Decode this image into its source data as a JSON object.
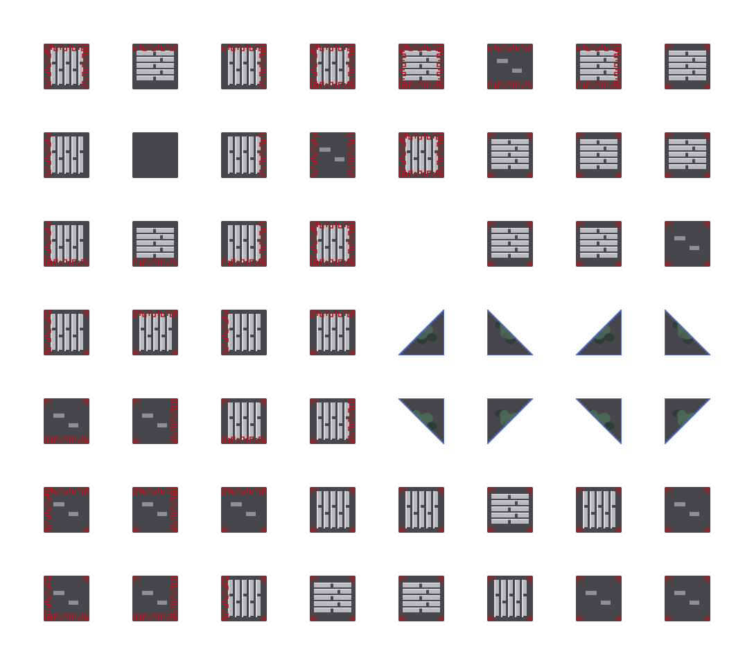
{
  "palette": {
    "background": "#ffffff",
    "floor": "#47474b",
    "brick": "#b8bac0",
    "brick_highlight": "#d7d8dc",
    "brick_shadow": "#8f9096",
    "border_red": "#b3141b",
    "border_blue": "#4f6fd2",
    "foliage": "#4d6a57",
    "foliage_dark": "#2b3d34"
  },
  "tiles": [
    {
      "id": "r1c1",
      "kind": "wall",
      "pattern": "vertical",
      "edges": [
        "top",
        "left",
        "right"
      ]
    },
    {
      "id": "r1c2",
      "kind": "wall",
      "pattern": "horizontal",
      "edges": [
        "top"
      ]
    },
    {
      "id": "r1c3",
      "kind": "wall",
      "pattern": "vertical",
      "edges": [
        "top",
        "right"
      ]
    },
    {
      "id": "r1c4",
      "kind": "wall",
      "pattern": "vertical",
      "edges": [
        "top",
        "left",
        "right",
        "bottom"
      ]
    },
    {
      "id": "r1c5",
      "kind": "wall",
      "pattern": "horizontal",
      "edges": [
        "top",
        "left",
        "right",
        "bottom"
      ]
    },
    {
      "id": "r1c6",
      "kind": "wall",
      "pattern": "dark",
      "edges": [
        "top",
        "bottom"
      ]
    },
    {
      "id": "r1c7",
      "kind": "wall",
      "pattern": "horizontal",
      "edges": [
        "top",
        "right",
        "bottom"
      ]
    },
    {
      "id": "r1c8",
      "kind": "wall",
      "pattern": "horizontal",
      "edges": [
        "corners"
      ]
    },
    {
      "id": "r2c1",
      "kind": "wall",
      "pattern": "vertical",
      "edges": [
        "left"
      ]
    },
    {
      "id": "r2c2",
      "kind": "floor",
      "pattern": "none",
      "edges": []
    },
    {
      "id": "r2c3",
      "kind": "wall",
      "pattern": "vertical",
      "edges": [
        "right"
      ]
    },
    {
      "id": "r2c4",
      "kind": "wall",
      "pattern": "dark",
      "edges": [
        "left",
        "right"
      ]
    },
    {
      "id": "r2c5",
      "kind": "wall",
      "pattern": "vertical",
      "edges": [
        "top",
        "left",
        "right",
        "bottom"
      ]
    },
    {
      "id": "r2c6",
      "kind": "wall",
      "pattern": "horizontal",
      "edges": [
        "corners"
      ]
    },
    {
      "id": "r2c7",
      "kind": "wall",
      "pattern": "horizontal",
      "edges": [
        "corners"
      ]
    },
    {
      "id": "r2c8",
      "kind": "wall",
      "pattern": "horizontal",
      "edges": [
        "corners"
      ]
    },
    {
      "id": "r3c1",
      "kind": "wall",
      "pattern": "vertical",
      "edges": [
        "left",
        "bottom"
      ]
    },
    {
      "id": "r3c2",
      "kind": "wall",
      "pattern": "horizontal",
      "edges": [
        "bottom"
      ]
    },
    {
      "id": "r3c3",
      "kind": "wall",
      "pattern": "vertical",
      "edges": [
        "right",
        "bottom"
      ]
    },
    {
      "id": "r3c4",
      "kind": "wall",
      "pattern": "vertical",
      "edges": [
        "top",
        "left",
        "right",
        "bottom"
      ]
    },
    {
      "id": "r3c5",
      "kind": "empty",
      "pattern": "none",
      "edges": []
    },
    {
      "id": "r3c6",
      "kind": "wall",
      "pattern": "horizontal",
      "edges": [
        "corners"
      ]
    },
    {
      "id": "r3c7",
      "kind": "wall",
      "pattern": "horizontal",
      "edges": [
        "corners"
      ]
    },
    {
      "id": "r3c8",
      "kind": "wall",
      "pattern": "dark",
      "edges": [
        "corners"
      ]
    },
    {
      "id": "r4c1",
      "kind": "wall",
      "pattern": "vertical",
      "edges": [
        "left",
        "corners"
      ]
    },
    {
      "id": "r4c2",
      "kind": "wall",
      "pattern": "vertical",
      "edges": [
        "top",
        "corners"
      ]
    },
    {
      "id": "r4c3",
      "kind": "wall",
      "pattern": "vertical",
      "edges": [
        "left"
      ]
    },
    {
      "id": "r4c4",
      "kind": "wall",
      "pattern": "vertical",
      "edges": [
        "top",
        "corners"
      ]
    },
    {
      "id": "r4c5",
      "kind": "slope",
      "orientation": "bottom-right",
      "edges": []
    },
    {
      "id": "r4c6",
      "kind": "slope",
      "orientation": "bottom-left",
      "edges": []
    },
    {
      "id": "r4c7",
      "kind": "slope",
      "orientation": "bottom-right",
      "edges": []
    },
    {
      "id": "r4c8",
      "kind": "slope",
      "orientation": "bottom-left",
      "edges": []
    },
    {
      "id": "r5c1",
      "kind": "wall",
      "pattern": "dark",
      "edges": [
        "bottom",
        "corners"
      ]
    },
    {
      "id": "r5c2",
      "kind": "wall",
      "pattern": "dark",
      "edges": [
        "right",
        "corners"
      ]
    },
    {
      "id": "r5c3",
      "kind": "wall",
      "pattern": "vertical",
      "edges": [
        "bottom",
        "corners"
      ]
    },
    {
      "id": "r5c4",
      "kind": "wall",
      "pattern": "vertical",
      "edges": [
        "right",
        "corners"
      ]
    },
    {
      "id": "r5c5",
      "kind": "slope",
      "orientation": "top-right",
      "edges": []
    },
    {
      "id": "r5c6",
      "kind": "slope",
      "orientation": "top-left",
      "edges": []
    },
    {
      "id": "r5c7",
      "kind": "slope",
      "orientation": "top-right",
      "edges": []
    },
    {
      "id": "r5c8",
      "kind": "slope",
      "orientation": "top-left",
      "edges": []
    },
    {
      "id": "r6c1",
      "kind": "wall",
      "pattern": "dark",
      "edges": [
        "top",
        "left",
        "corners"
      ]
    },
    {
      "id": "r6c2",
      "kind": "wall",
      "pattern": "dark",
      "edges": [
        "top",
        "right",
        "corners"
      ]
    },
    {
      "id": "r6c3",
      "kind": "wall",
      "pattern": "dark",
      "edges": [
        "top",
        "corners"
      ]
    },
    {
      "id": "r6c4",
      "kind": "wall",
      "pattern": "vertical",
      "edges": [
        "corners"
      ]
    },
    {
      "id": "r6c5",
      "kind": "wall",
      "pattern": "vertical",
      "edges": [
        "corners"
      ]
    },
    {
      "id": "r6c6",
      "kind": "wall",
      "pattern": "horizontal",
      "edges": [
        "corners"
      ]
    },
    {
      "id": "r6c7",
      "kind": "wall",
      "pattern": "vertical",
      "edges": [
        "corners"
      ]
    },
    {
      "id": "r6c8",
      "kind": "wall",
      "pattern": "dark",
      "edges": [
        "corners"
      ]
    },
    {
      "id": "r7c1",
      "kind": "wall",
      "pattern": "dark",
      "edges": [
        "left",
        "bottom",
        "corners"
      ]
    },
    {
      "id": "r7c2",
      "kind": "wall",
      "pattern": "dark",
      "edges": [
        "bottom",
        "right",
        "corners"
      ]
    },
    {
      "id": "r7c3",
      "kind": "wall",
      "pattern": "vertical",
      "edges": [
        "left",
        "corners"
      ]
    },
    {
      "id": "r7c4",
      "kind": "wall",
      "pattern": "horizontal",
      "edges": [
        "corners"
      ]
    },
    {
      "id": "r7c5",
      "kind": "wall",
      "pattern": "horizontal",
      "edges": [
        "corners"
      ]
    },
    {
      "id": "r7c6",
      "kind": "wall",
      "pattern": "vertical",
      "edges": [
        "corners"
      ]
    },
    {
      "id": "r7c7",
      "kind": "wall",
      "pattern": "dark",
      "edges": [
        "corners"
      ]
    },
    {
      "id": "r7c8",
      "kind": "wall",
      "pattern": "dark",
      "edges": [
        "corners"
      ]
    }
  ]
}
